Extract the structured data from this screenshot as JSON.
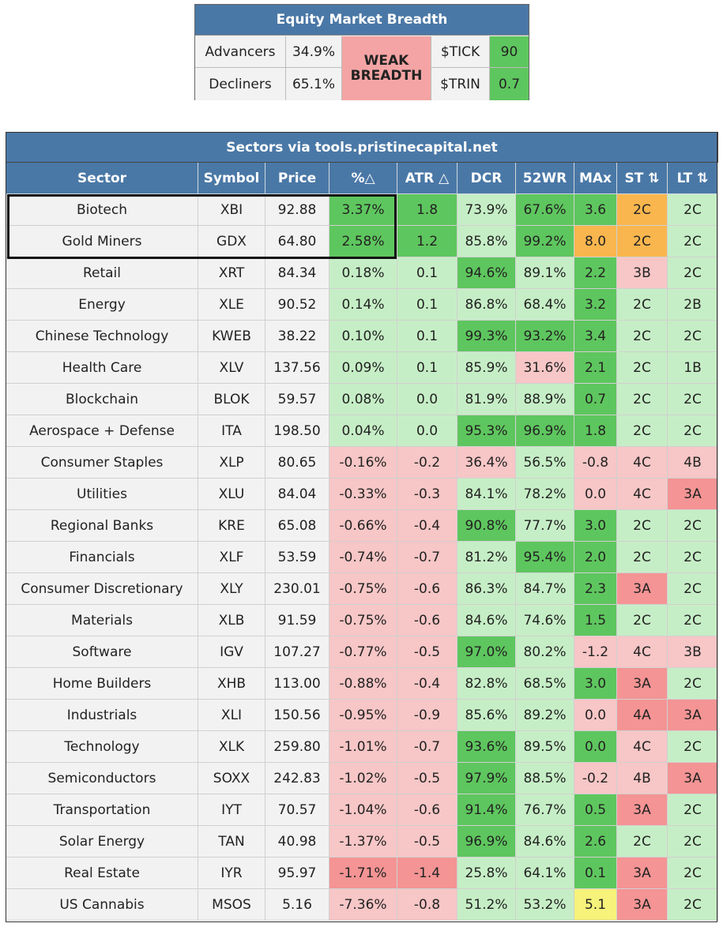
{
  "breadth": {
    "title": "Equity Market Breadth",
    "advancers_label": "Advancers",
    "advancers_value": "34.9%",
    "decliners_label": "Decliners",
    "decliners_value": "65.1%",
    "status_line1": "WEAK",
    "status_line2": "BREADTH",
    "tick_label": "$TICK",
    "tick_value": "90",
    "trin_label": "$TRIN",
    "trin_value": "0.7"
  },
  "table": {
    "title": "Sectors via tools.pristinecapital.net",
    "columns": [
      "Sector",
      "Symbol",
      "Price",
      "%△",
      "ATR △",
      "DCR",
      "52WR",
      "MAx",
      "ST ⇅",
      "LT ⇅"
    ],
    "rows": [
      [
        "Biotech",
        "XBI",
        "92.88",
        "3.37%",
        "1.8",
        "73.9%",
        "67.6%",
        "3.6",
        "2C",
        "2C"
      ],
      [
        "Gold Miners",
        "GDX",
        "64.80",
        "2.58%",
        "1.2",
        "85.8%",
        "99.2%",
        "8.0",
        "2C",
        "2C"
      ],
      [
        "Retail",
        "XRT",
        "84.34",
        "0.18%",
        "0.1",
        "94.6%",
        "89.1%",
        "2.2",
        "3B",
        "2C"
      ],
      [
        "Energy",
        "XLE",
        "90.52",
        "0.14%",
        "0.1",
        "86.8%",
        "68.4%",
        "3.2",
        "2C",
        "2B"
      ],
      [
        "Chinese Technology",
        "KWEB",
        "38.22",
        "0.10%",
        "0.1",
        "99.3%",
        "93.2%",
        "3.4",
        "2C",
        "2C"
      ],
      [
        "Health Care",
        "XLV",
        "137.56",
        "0.09%",
        "0.1",
        "85.9%",
        "31.6%",
        "2.1",
        "2C",
        "1B"
      ],
      [
        "Blockchain",
        "BLOK",
        "59.57",
        "0.08%",
        "0.0",
        "81.9%",
        "88.9%",
        "0.7",
        "2C",
        "2C"
      ],
      [
        "Aerospace + Defense",
        "ITA",
        "198.50",
        "0.04%",
        "0.0",
        "95.3%",
        "96.9%",
        "1.8",
        "2C",
        "2C"
      ],
      [
        "Consumer Staples",
        "XLP",
        "80.65",
        "-0.16%",
        "-0.2",
        "36.4%",
        "56.5%",
        "-0.8",
        "4C",
        "4B"
      ],
      [
        "Utilities",
        "XLU",
        "84.04",
        "-0.33%",
        "-0.3",
        "84.1%",
        "78.2%",
        "0.0",
        "4C",
        "3A"
      ],
      [
        "Regional Banks",
        "KRE",
        "65.08",
        "-0.66%",
        "-0.4",
        "90.8%",
        "77.7%",
        "3.0",
        "2C",
        "2C"
      ],
      [
        "Financials",
        "XLF",
        "53.59",
        "-0.74%",
        "-0.7",
        "81.2%",
        "95.4%",
        "2.0",
        "2C",
        "2C"
      ],
      [
        "Consumer Discretionary",
        "XLY",
        "230.01",
        "-0.75%",
        "-0.6",
        "86.3%",
        "84.7%",
        "2.3",
        "3A",
        "2C"
      ],
      [
        "Materials",
        "XLB",
        "91.59",
        "-0.75%",
        "-0.6",
        "84.6%",
        "74.6%",
        "1.5",
        "2C",
        "2C"
      ],
      [
        "Software",
        "IGV",
        "107.27",
        "-0.77%",
        "-0.5",
        "97.0%",
        "80.2%",
        "-1.2",
        "4C",
        "3B"
      ],
      [
        "Home Builders",
        "XHB",
        "113.00",
        "-0.88%",
        "-0.4",
        "82.8%",
        "68.5%",
        "3.0",
        "3A",
        "2C"
      ],
      [
        "Industrials",
        "XLI",
        "150.56",
        "-0.95%",
        "-0.9",
        "85.6%",
        "89.2%",
        "0.0",
        "4A",
        "3A"
      ],
      [
        "Technology",
        "XLK",
        "259.80",
        "-1.01%",
        "-0.7",
        "93.6%",
        "89.5%",
        "0.0",
        "4C",
        "2C"
      ],
      [
        "Semiconductors",
        "SOXX",
        "242.83",
        "-1.02%",
        "-0.5",
        "97.9%",
        "88.5%",
        "-0.2",
        "4B",
        "3A"
      ],
      [
        "Transportation",
        "IYT",
        "70.57",
        "-1.04%",
        "-0.6",
        "91.4%",
        "76.7%",
        "0.5",
        "3A",
        "2C"
      ],
      [
        "Solar Energy",
        "TAN",
        "40.98",
        "-1.37%",
        "-0.5",
        "96.9%",
        "84.6%",
        "2.6",
        "2C",
        "2C"
      ],
      [
        "Real Estate",
        "IYR",
        "95.97",
        "-1.71%",
        "-1.4",
        "25.8%",
        "64.1%",
        "0.1",
        "3A",
        "2C"
      ],
      [
        "US Cannabis",
        "MSOS",
        "5.16",
        "-7.36%",
        "-0.8",
        "51.2%",
        "53.2%",
        "5.1",
        "3A",
        "2C"
      ]
    ],
    "cell_colors": [
      [
        "g3",
        "g3",
        "g1",
        "g3",
        "g3",
        "o",
        "g1",
        "g1"
      ],
      [
        "g3",
        "g3",
        "g1",
        "g3",
        "o",
        "o",
        "g1",
        "g1"
      ],
      [
        "g1",
        "g1",
        "g3",
        "g1",
        "g3",
        "r1",
        "g1",
        "g1"
      ],
      [
        "g1",
        "g1",
        "g1",
        "g1",
        "g3",
        "g1",
        "g1",
        "g1"
      ],
      [
        "g1",
        "g1",
        "g3",
        "g3",
        "g3",
        "g1",
        "g1",
        "g1"
      ],
      [
        "g1",
        "g1",
        "g1",
        "r1",
        "g3",
        "g1",
        "g1",
        "g1"
      ],
      [
        "g1",
        "g1",
        "g1",
        "g1",
        "g3",
        "g1",
        "g1",
        "g1"
      ],
      [
        "g1",
        "g1",
        "g3",
        "g3",
        "g3",
        "g1",
        "g1",
        "g1"
      ],
      [
        "r1",
        "r1",
        "r1",
        "g1",
        "r1",
        "r1",
        "r1",
        "r1"
      ],
      [
        "r1",
        "r1",
        "g1",
        "g1",
        "r1",
        "r1",
        "r2",
        "r2"
      ],
      [
        "r1",
        "r1",
        "g3",
        "g1",
        "g3",
        "g1",
        "g1",
        "g1"
      ],
      [
        "r1",
        "r1",
        "g1",
        "g3",
        "g3",
        "g1",
        "g1",
        "g1"
      ],
      [
        "r1",
        "r1",
        "g1",
        "g1",
        "g3",
        "r2",
        "g1",
        "g1"
      ],
      [
        "r1",
        "r1",
        "g1",
        "g1",
        "g3",
        "g1",
        "g1",
        "g1"
      ],
      [
        "r1",
        "r1",
        "g3",
        "g1",
        "r1",
        "r1",
        "r1",
        "r1"
      ],
      [
        "r1",
        "r1",
        "g1",
        "g1",
        "g3",
        "r2",
        "g1",
        "g1"
      ],
      [
        "r1",
        "r1",
        "g1",
        "g1",
        "r1",
        "r2",
        "r2",
        "r2"
      ],
      [
        "r1",
        "r1",
        "g3",
        "g1",
        "g3",
        "r1",
        "g1",
        "g1"
      ],
      [
        "r1",
        "r1",
        "g3",
        "g1",
        "r1",
        "r1",
        "r2",
        "r2"
      ],
      [
        "r1",
        "r1",
        "g3",
        "g1",
        "g3",
        "r2",
        "g1",
        "g1"
      ],
      [
        "r1",
        "r1",
        "g3",
        "g1",
        "g3",
        "g1",
        "g1",
        "g1"
      ],
      [
        "r2",
        "r2",
        "g1",
        "g1",
        "g3",
        "r2",
        "g1",
        "g1"
      ],
      [
        "r1",
        "r1",
        "g1",
        "g1",
        "y",
        "r2",
        "g1",
        "g1"
      ]
    ],
    "palette": {
      "g1": "#c6eec6",
      "g3": "#5ec65e",
      "r1": "#f7c6c6",
      "r2": "#f49494",
      "o": "#f9b64e",
      "y": "#f6f27a",
      "neutral": "#f2f2f2",
      "header": "#4a78a6"
    }
  }
}
